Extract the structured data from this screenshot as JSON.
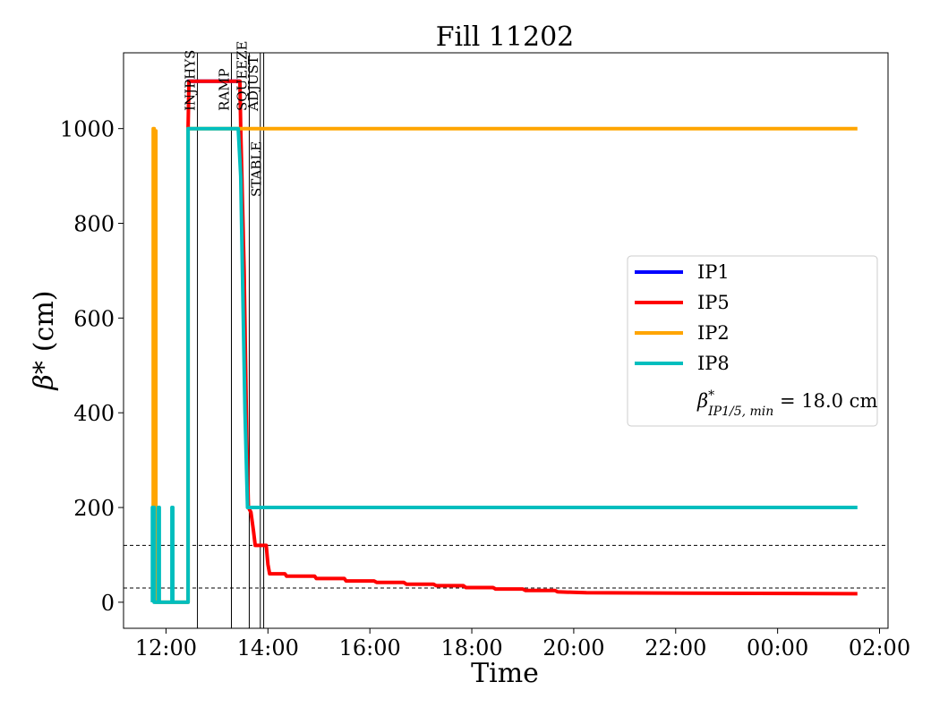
{
  "chart_data": {
    "type": "line",
    "title": "Fill 11202",
    "xlabel": "Time",
    "ylabel": "(cm)",
    "ylabel_symbol": "β*",
    "xlim": [
      "11:10",
      "02:10"
    ],
    "ylim": [
      -55,
      1160
    ],
    "x_ticks": [
      "12:00",
      "14:00",
      "16:00",
      "18:00",
      "20:00",
      "22:00",
      "00:00",
      "02:00"
    ],
    "y_ticks": [
      0,
      200,
      400,
      600,
      800,
      1000
    ],
    "grid": false,
    "legend_position": "center-right",
    "phases": [
      {
        "label": "INJPHYS",
        "time": "12:37"
      },
      {
        "label": "RAMP",
        "time": "13:17"
      },
      {
        "label": "SQUEEZE",
        "time": "13:38"
      },
      {
        "label": "ADJUST",
        "time": "13:51"
      },
      {
        "label": "STABLE",
        "time": "13:55"
      }
    ],
    "hlines": [
      {
        "value": 120,
        "style": "dashed",
        "color": "#000000"
      },
      {
        "value": 30,
        "style": "dashed",
        "color": "#000000"
      }
    ],
    "min_label": {
      "symbol": "β",
      "superscript": "*",
      "subscript": "IP1/5, min",
      "text": " = 18.0 cm"
    },
    "series": [
      {
        "name": "IP1",
        "color": "#0000ff",
        "points": [
          [
            "12:25",
            1100
          ],
          [
            "12:30",
            1100
          ],
          [
            "13:25",
            1100
          ],
          [
            "13:27",
            1100
          ]
        ]
      },
      {
        "name": "IP5",
        "color": "#ff0000",
        "points": [
          [
            "12:26",
            1000
          ],
          [
            "12:27",
            1100
          ],
          [
            "13:27",
            1100
          ],
          [
            "13:28",
            1000
          ],
          [
            "13:32",
            700
          ],
          [
            "13:35",
            350
          ],
          [
            "13:37",
            200
          ],
          [
            "13:40",
            190
          ],
          [
            "13:43",
            150
          ],
          [
            "13:45",
            120
          ],
          [
            "13:58",
            120
          ],
          [
            "14:00",
            80
          ],
          [
            "14:02",
            60
          ],
          [
            "14:20",
            60
          ],
          [
            "14:22",
            55
          ],
          [
            "14:55",
            55
          ],
          [
            "14:57",
            50
          ],
          [
            "15:30",
            50
          ],
          [
            "15:32",
            45
          ],
          [
            "16:05",
            45
          ],
          [
            "16:08",
            42
          ],
          [
            "16:40",
            42
          ],
          [
            "16:43",
            38
          ],
          [
            "17:15",
            38
          ],
          [
            "17:18",
            35
          ],
          [
            "17:50",
            35
          ],
          [
            "17:53",
            31
          ],
          [
            "18:25",
            31
          ],
          [
            "18:28",
            28
          ],
          [
            "19:00",
            28
          ],
          [
            "19:03",
            25
          ],
          [
            "19:38",
            25
          ],
          [
            "19:41",
            22
          ],
          [
            "20:15",
            20
          ],
          [
            "01:34",
            18
          ]
        ]
      },
      {
        "name": "IP2",
        "color": "#ffa500",
        "points": [
          [
            "11:45",
            0
          ],
          [
            "11:45",
            1000
          ],
          [
            "11:46",
            1000
          ],
          [
            "11:46",
            200
          ],
          [
            "11:47",
            200
          ],
          [
            "11:47",
            995
          ],
          [
            "11:48",
            995
          ],
          [
            "11:48",
            0
          ],
          [
            "12:26",
            0
          ],
          [
            "12:26",
            1000
          ],
          [
            "13:27",
            1000
          ],
          [
            "01:34",
            1000
          ]
        ]
      },
      {
        "name": "IP8",
        "color": "#00bebe",
        "points": [
          [
            "11:44",
            0
          ],
          [
            "11:44",
            200
          ],
          [
            "11:46",
            200
          ],
          [
            "11:46",
            0
          ],
          [
            "11:51",
            0
          ],
          [
            "11:51",
            200
          ],
          [
            "11:52",
            200
          ],
          [
            "11:52",
            0
          ],
          [
            "12:07",
            0
          ],
          [
            "12:07",
            200
          ],
          [
            "12:08",
            200
          ],
          [
            "12:08",
            0
          ],
          [
            "12:26",
            0
          ],
          [
            "12:26",
            1000
          ],
          [
            "13:25",
            1000
          ],
          [
            "13:28",
            900
          ],
          [
            "13:30",
            700
          ],
          [
            "13:33",
            400
          ],
          [
            "13:36",
            200
          ],
          [
            "01:34",
            200
          ]
        ]
      }
    ]
  }
}
